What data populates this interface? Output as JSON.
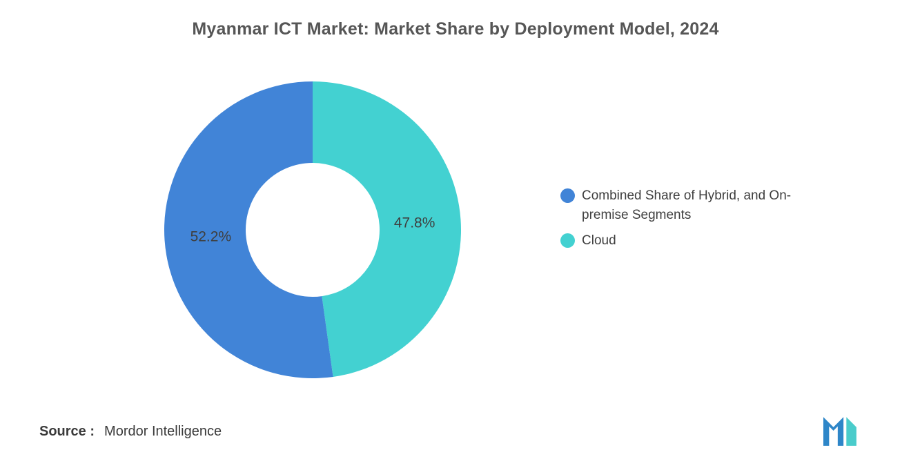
{
  "title": "Myanmar ICT Market: Market Share by Deployment Model, 2024",
  "source": {
    "label": "Source :",
    "value": "Mordor Intelligence"
  },
  "logo": {
    "name": "mordor-intelligence-logo",
    "colors": {
      "blue": "#2E86C8",
      "teal": "#4ACCCB"
    }
  },
  "chart_data": {
    "type": "pie",
    "subtype": "donut",
    "title": "Myanmar ICT Market: Market Share by Deployment Model, 2024",
    "series": [
      {
        "name": "Combined Share of Hybrid, and On-premise Segments",
        "value": 52.2,
        "label": "52.2%",
        "color": "#4184D7"
      },
      {
        "name": "Cloud",
        "value": 47.8,
        "label": "47.8%",
        "color": "#43D1D1"
      }
    ],
    "draw_order": [
      1,
      0
    ],
    "start_angle_deg_from_top": 0,
    "direction": "clockwise",
    "inner_radius_ratio": 0.45,
    "legend_position": "right",
    "value_labels_visible": true
  }
}
